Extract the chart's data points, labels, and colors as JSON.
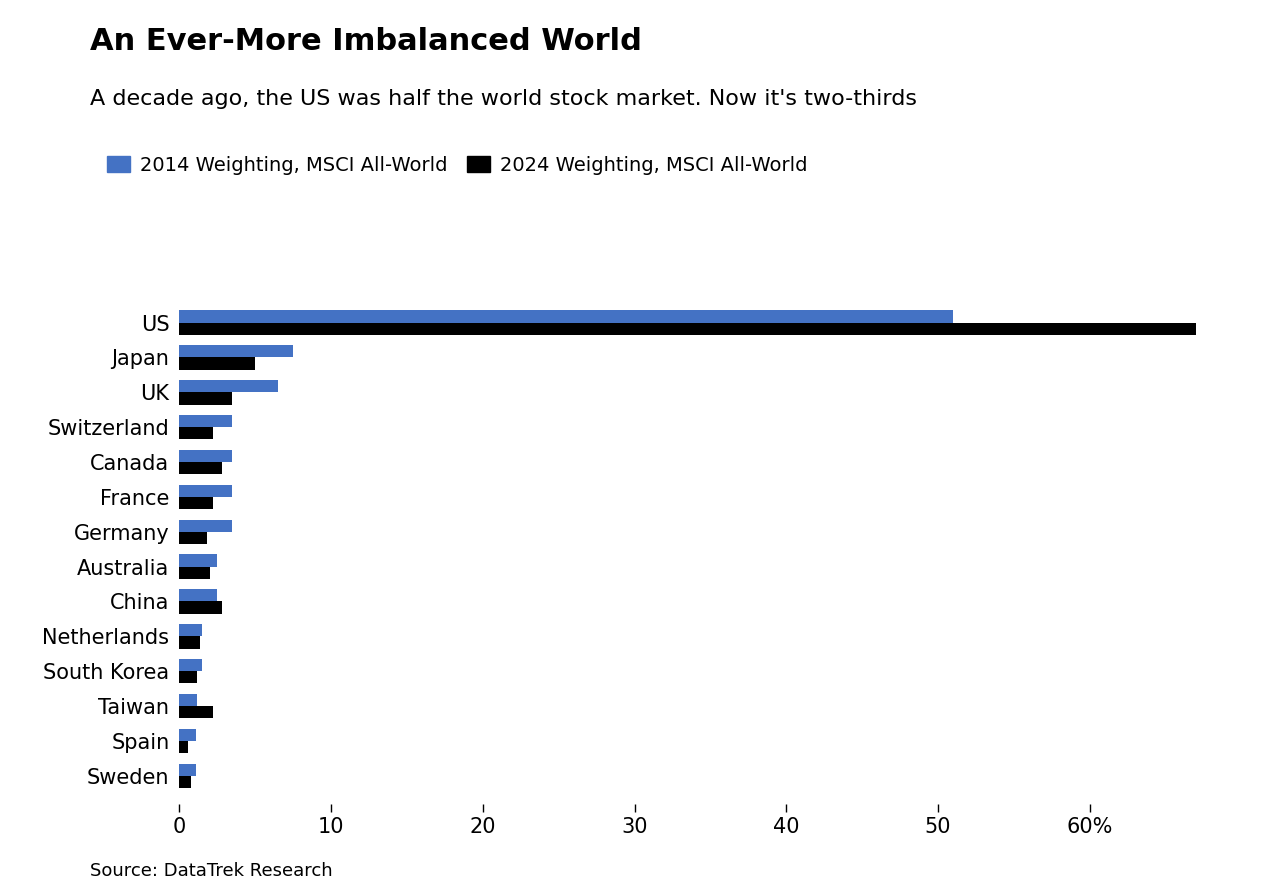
{
  "title": "An Ever-More Imbalanced World",
  "subtitle": "A decade ago, the US was half the world stock market. Now it's two-thirds",
  "legend_labels": [
    "2014 Weighting, MSCI All-World",
    "2024 Weighting, MSCI All-World"
  ],
  "legend_colors": [
    "#4472C4",
    "#000000"
  ],
  "source": "Source: DataTrek Research",
  "countries": [
    "US",
    "Japan",
    "UK",
    "Switzerland",
    "Canada",
    "France",
    "Germany",
    "Australia",
    "China",
    "Netherlands",
    "South Korea",
    "Taiwan",
    "Spain",
    "Sweden"
  ],
  "values_2014": [
    51.0,
    7.5,
    6.5,
    3.5,
    3.5,
    3.5,
    3.5,
    2.5,
    2.5,
    1.5,
    1.5,
    1.2,
    1.1,
    1.1
  ],
  "values_2024": [
    67.0,
    5.0,
    3.5,
    2.2,
    2.8,
    2.2,
    1.8,
    2.0,
    2.8,
    1.4,
    1.2,
    2.2,
    0.6,
    0.8
  ],
  "color_2014": "#4472C4",
  "color_2024": "#000000",
  "xlim": [
    0,
    70
  ],
  "xticks": [
    0,
    10,
    20,
    30,
    40,
    50,
    60
  ],
  "xticklabels": [
    "0",
    "10",
    "20",
    "30",
    "40",
    "50",
    "60%"
  ],
  "background_color": "#ffffff",
  "bar_height": 0.35,
  "title_fontsize": 22,
  "subtitle_fontsize": 16,
  "label_fontsize": 15,
  "tick_fontsize": 15,
  "legend_fontsize": 14,
  "source_fontsize": 13
}
